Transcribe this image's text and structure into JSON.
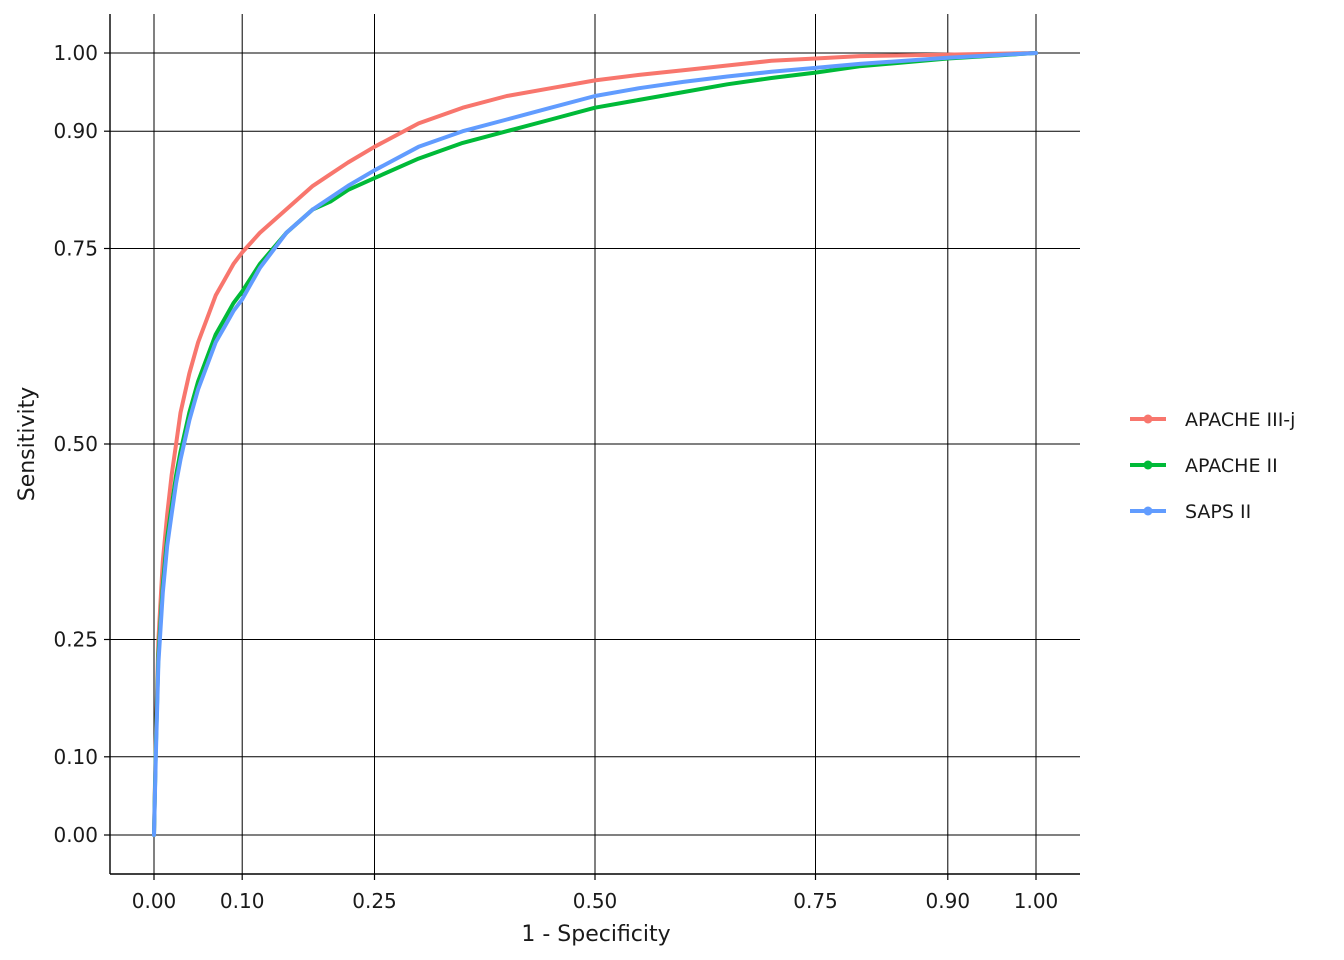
{
  "chart_data": {
    "type": "line",
    "subtype": "roc_curve",
    "xlabel": "1 - Specificity",
    "ylabel": "Sensitivity",
    "xlim": [
      0,
      1
    ],
    "ylim": [
      0,
      1
    ],
    "xticks": [
      0.0,
      0.1,
      0.25,
      0.5,
      0.75,
      0.9,
      1.0
    ],
    "xtick_labels": [
      "0.00",
      "0.10",
      "0.25",
      "0.50",
      "0.75",
      "0.90",
      "1.00"
    ],
    "yticks": [
      0.0,
      0.1,
      0.25,
      0.5,
      0.75,
      0.9,
      1.0
    ],
    "ytick_labels": [
      "0.00",
      "0.10",
      "0.25",
      "0.50",
      "0.75",
      "0.90",
      "1.00"
    ],
    "grid": true,
    "legend_position": "right",
    "series": [
      {
        "name": "APACHE III-j",
        "color": "#F8766D",
        "x": [
          0,
          0.002,
          0.005,
          0.01,
          0.015,
          0.02,
          0.025,
          0.03,
          0.04,
          0.05,
          0.06,
          0.07,
          0.08,
          0.09,
          0.1,
          0.12,
          0.15,
          0.18,
          0.2,
          0.22,
          0.25,
          0.3,
          0.35,
          0.4,
          0.45,
          0.5,
          0.55,
          0.6,
          0.65,
          0.7,
          0.75,
          0.8,
          0.9,
          1.0
        ],
        "y": [
          0,
          0.12,
          0.25,
          0.35,
          0.41,
          0.46,
          0.5,
          0.54,
          0.59,
          0.63,
          0.66,
          0.69,
          0.71,
          0.73,
          0.745,
          0.77,
          0.8,
          0.83,
          0.845,
          0.86,
          0.88,
          0.91,
          0.93,
          0.945,
          0.955,
          0.965,
          0.972,
          0.978,
          0.984,
          0.99,
          0.993,
          0.996,
          0.998,
          1.0
        ]
      },
      {
        "name": "APACHE II",
        "color": "#00BA38",
        "x": [
          0,
          0.002,
          0.005,
          0.01,
          0.015,
          0.02,
          0.025,
          0.03,
          0.04,
          0.05,
          0.06,
          0.07,
          0.08,
          0.09,
          0.1,
          0.12,
          0.15,
          0.18,
          0.2,
          0.22,
          0.25,
          0.3,
          0.35,
          0.4,
          0.45,
          0.5,
          0.55,
          0.6,
          0.65,
          0.7,
          0.75,
          0.8,
          0.9,
          1.0
        ],
        "y": [
          0,
          0.11,
          0.23,
          0.32,
          0.38,
          0.42,
          0.46,
          0.49,
          0.54,
          0.58,
          0.61,
          0.64,
          0.66,
          0.68,
          0.695,
          0.73,
          0.77,
          0.8,
          0.81,
          0.825,
          0.84,
          0.865,
          0.885,
          0.9,
          0.915,
          0.93,
          0.94,
          0.95,
          0.96,
          0.968,
          0.975,
          0.983,
          0.993,
          1.0
        ]
      },
      {
        "name": "SAPS II",
        "color": "#619CFF",
        "x": [
          0,
          0.002,
          0.005,
          0.01,
          0.015,
          0.02,
          0.025,
          0.03,
          0.04,
          0.05,
          0.06,
          0.07,
          0.08,
          0.09,
          0.1,
          0.12,
          0.15,
          0.18,
          0.2,
          0.22,
          0.25,
          0.3,
          0.35,
          0.4,
          0.45,
          0.5,
          0.55,
          0.6,
          0.65,
          0.7,
          0.75,
          0.8,
          0.9,
          1.0
        ],
        "y": [
          0,
          0.1,
          0.22,
          0.31,
          0.37,
          0.41,
          0.45,
          0.48,
          0.53,
          0.57,
          0.6,
          0.63,
          0.65,
          0.67,
          0.685,
          0.725,
          0.77,
          0.8,
          0.815,
          0.83,
          0.85,
          0.88,
          0.9,
          0.915,
          0.93,
          0.945,
          0.955,
          0.963,
          0.97,
          0.976,
          0.981,
          0.986,
          0.994,
          1.0
        ]
      }
    ]
  }
}
